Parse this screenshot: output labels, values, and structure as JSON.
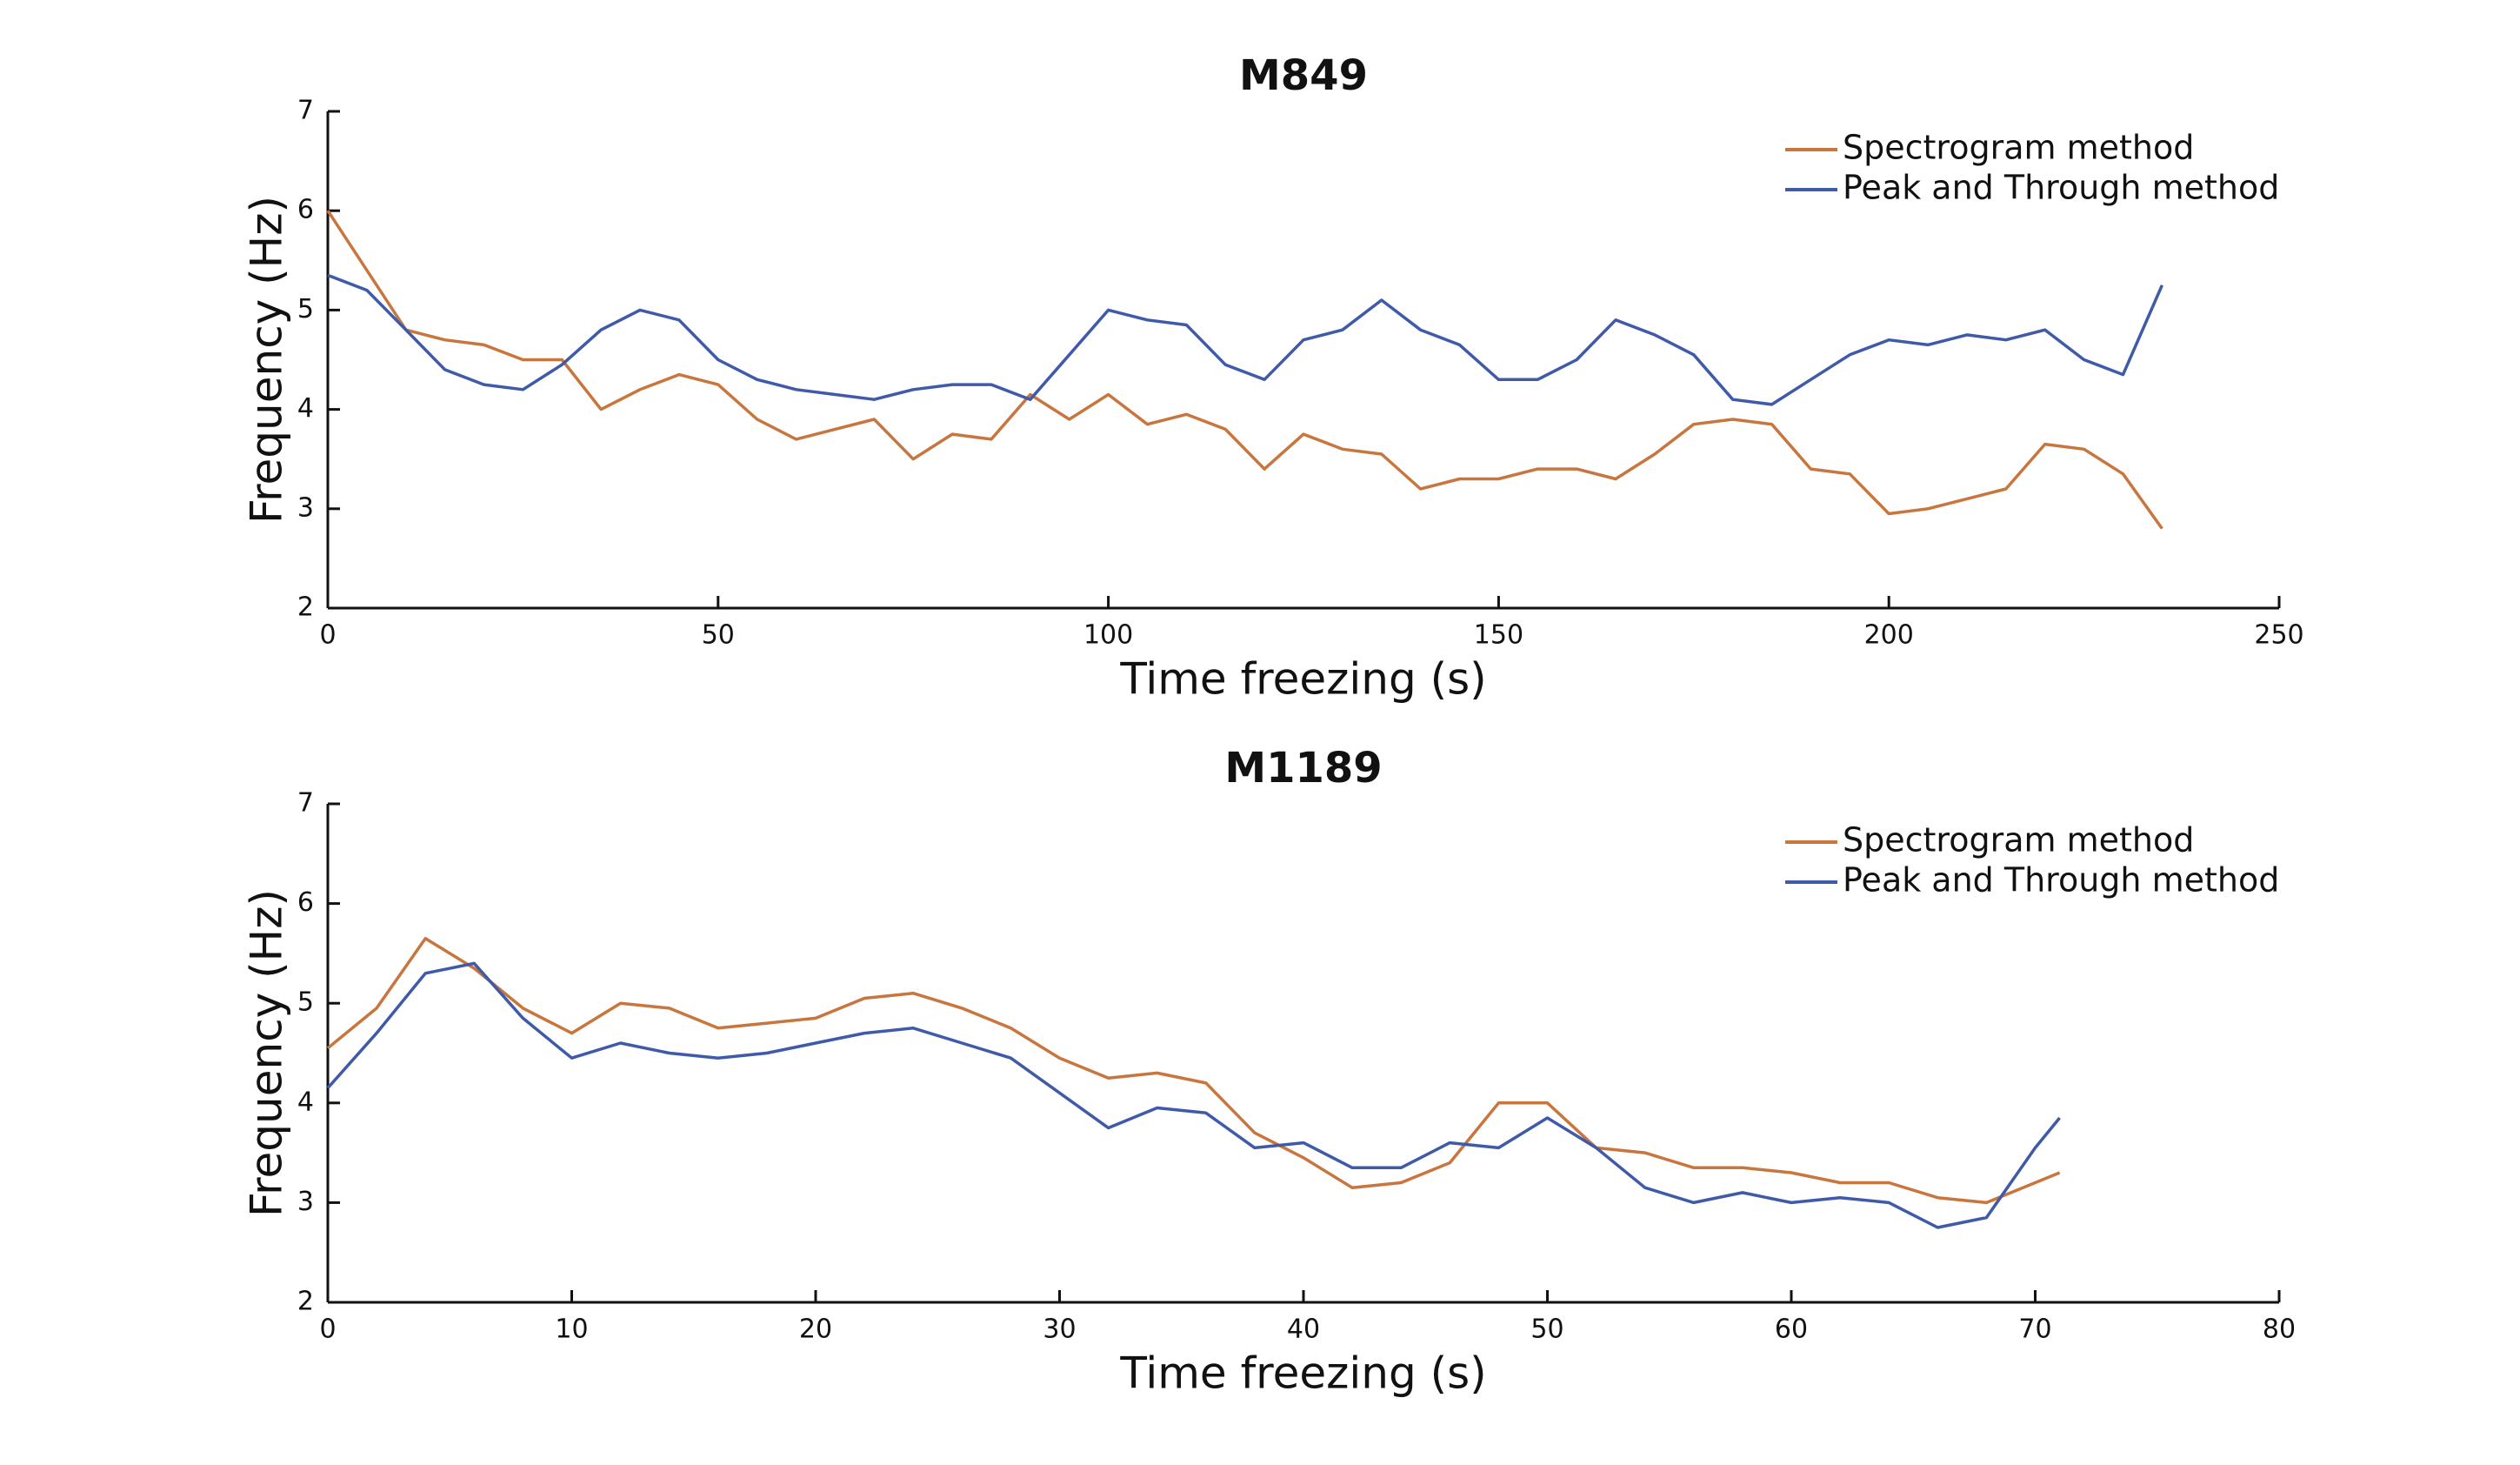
{
  "chart_data": [
    {
      "type": "line",
      "title": "M849",
      "x_label": "Time freezing (s)",
      "y_label": "Frequency (Hz)",
      "x": [
        0,
        5,
        10,
        15,
        20,
        25,
        30,
        35,
        40,
        45,
        50,
        55,
        60,
        65,
        70,
        75,
        80,
        85,
        90,
        95,
        100,
        105,
        110,
        115,
        120,
        125,
        130,
        135,
        140,
        145,
        150,
        155,
        160,
        165,
        170,
        175,
        180,
        185,
        190,
        195,
        200,
        205,
        210,
        215,
        220,
        225,
        230,
        235
      ],
      "series": [
        {
          "name": "Spectrogram method",
          "color": "#c8763e",
          "values": [
            6.0,
            5.4,
            4.8,
            4.7,
            4.65,
            4.5,
            4.5,
            4.0,
            4.2,
            4.35,
            4.25,
            3.9,
            3.7,
            3.8,
            3.9,
            3.5,
            3.75,
            3.7,
            4.15,
            3.9,
            4.15,
            3.85,
            3.95,
            3.8,
            3.4,
            3.75,
            3.6,
            3.55,
            3.2,
            3.3,
            3.3,
            3.4,
            3.4,
            3.3,
            3.55,
            3.85,
            3.9,
            3.85,
            3.4,
            3.35,
            2.95,
            3.0,
            3.1,
            3.2,
            3.65,
            3.6,
            3.35,
            2.8
          ]
        },
        {
          "name": "Peak and Through method",
          "color": "#3f5aa8",
          "values": [
            5.35,
            5.2,
            4.8,
            4.4,
            4.25,
            4.2,
            4.45,
            4.8,
            5.0,
            4.9,
            4.5,
            4.3,
            4.2,
            4.15,
            4.1,
            4.2,
            4.25,
            4.25,
            4.1,
            4.55,
            5.0,
            4.9,
            4.85,
            4.45,
            4.3,
            4.7,
            4.8,
            5.1,
            4.8,
            4.65,
            4.3,
            4.3,
            4.5,
            4.9,
            4.75,
            4.55,
            4.1,
            4.05,
            4.3,
            4.55,
            4.7,
            4.65,
            4.75,
            4.7,
            4.8,
            4.5,
            4.35,
            5.25
          ]
        }
      ],
      "xlim": [
        0,
        250
      ],
      "xticks": [
        0,
        50,
        100,
        150,
        200,
        250
      ],
      "ylim": [
        2,
        7
      ],
      "yticks": [
        2,
        3,
        4,
        5,
        6,
        7
      ],
      "legend": "upper right"
    },
    {
      "type": "line",
      "title": "M1189",
      "x_label": "Time freezing (s)",
      "y_label": "Frequency (Hz)",
      "x": [
        0,
        2,
        4,
        6,
        8,
        10,
        12,
        14,
        16,
        18,
        20,
        22,
        24,
        26,
        28,
        30,
        32,
        34,
        36,
        38,
        40,
        42,
        44,
        46,
        48,
        50,
        52,
        54,
        56,
        58,
        60,
        62,
        64,
        66,
        68,
        70,
        71
      ],
      "series": [
        {
          "name": "Spectrogram method",
          "color": "#c8763e",
          "values": [
            4.55,
            4.95,
            5.65,
            5.35,
            4.95,
            4.7,
            5.0,
            4.95,
            4.75,
            4.8,
            4.85,
            5.05,
            5.1,
            4.95,
            4.75,
            4.45,
            4.25,
            4.3,
            4.2,
            3.7,
            3.45,
            3.15,
            3.2,
            3.4,
            4.0,
            4.0,
            3.55,
            3.5,
            3.35,
            3.35,
            3.3,
            3.2,
            3.2,
            3.05,
            3.0,
            3.2,
            3.3
          ]
        },
        {
          "name": "Peak and Through method",
          "color": "#3f5aa8",
          "values": [
            4.15,
            4.7,
            5.3,
            5.4,
            4.85,
            4.45,
            4.6,
            4.5,
            4.45,
            4.5,
            4.6,
            4.7,
            4.75,
            4.6,
            4.45,
            4.1,
            3.75,
            3.95,
            3.9,
            3.55,
            3.6,
            3.35,
            3.35,
            3.6,
            3.55,
            3.85,
            3.55,
            3.15,
            3.0,
            3.1,
            3.0,
            3.05,
            3.0,
            2.75,
            2.85,
            3.55,
            3.85
          ]
        }
      ],
      "xlim": [
        0,
        80
      ],
      "xticks": [
        0,
        10,
        20,
        30,
        40,
        50,
        60,
        70,
        80
      ],
      "ylim": [
        2,
        7
      ],
      "yticks": [
        2,
        3,
        4,
        5,
        6,
        7
      ],
      "legend": "upper right"
    }
  ]
}
